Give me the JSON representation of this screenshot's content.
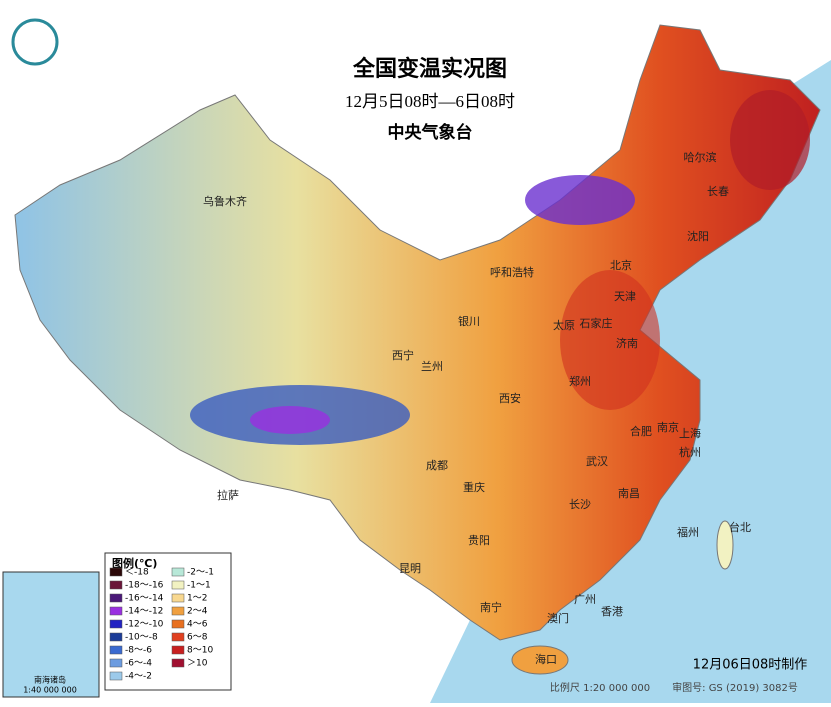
{
  "header": {
    "title": "全国变温实况图",
    "subtitle": "12月5日08时—6日08时",
    "publisher": "中央气象台"
  },
  "legend": {
    "title": "图例(℃)",
    "items": [
      {
        "label": "＜-18",
        "color": "#2b0808"
      },
      {
        "label": "-18～-16",
        "color": "#6a1538"
      },
      {
        "label": "-16～-14",
        "color": "#4a1878"
      },
      {
        "label": "-14～-12",
        "color": "#9a30e0"
      },
      {
        "label": "-12～-10",
        "color": "#2222c2"
      },
      {
        "label": "-10～-8",
        "color": "#1c3c98"
      },
      {
        "label": "-8～-6",
        "color": "#3a6ad0"
      },
      {
        "label": "-6～-4",
        "color": "#6c9ce0"
      },
      {
        "label": "-4～-2",
        "color": "#9ccaea"
      },
      {
        "label": "-2～-1",
        "color": "#b8e8d8"
      },
      {
        "label": "-1～1",
        "color": "#f2f2c2"
      },
      {
        "label": "1～2",
        "color": "#f8d890"
      },
      {
        "label": "2～4",
        "color": "#f0a040"
      },
      {
        "label": "4～6",
        "color": "#e87020"
      },
      {
        "label": "6～8",
        "color": "#e04020"
      },
      {
        "label": "8～10",
        "color": "#c82020"
      },
      {
        "label": "＞10",
        "color": "#a01030"
      }
    ]
  },
  "cities": [
    "乌鲁木齐",
    "哈尔滨",
    "长春",
    "沈阳",
    "北京",
    "天津",
    "呼和浩特",
    "石家庄",
    "太原",
    "济南",
    "银川",
    "西宁",
    "兰州",
    "郑州",
    "西安",
    "合肥",
    "南京",
    "上海",
    "杭州",
    "武汉",
    "拉萨",
    "成都",
    "重庆",
    "长沙",
    "南昌",
    "福州",
    "台北",
    "贵阳",
    "昆明",
    "南宁",
    "广州",
    "香港",
    "澳门",
    "海口"
  ],
  "inset": {
    "label": "南海诸岛",
    "scale": "1:40 000 000"
  },
  "footer": {
    "made": "12月06日08时制作",
    "scale": "比例尺 1:20 000 000",
    "approval": "审图号: GS (2019) 3082号"
  }
}
